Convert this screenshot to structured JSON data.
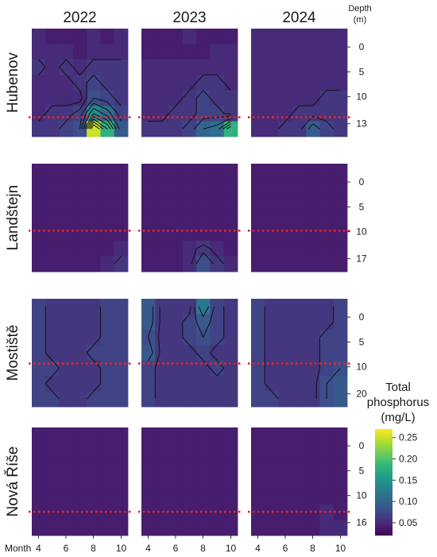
{
  "chart_data": {
    "type": "heatmap",
    "columns": [
      "2022",
      "2023",
      "2024"
    ],
    "rows": [
      "Hubenov",
      "Landštejn",
      "Mostiště",
      "Nová Říše"
    ],
    "depth_header": "Depth",
    "depth_unit": "(m)",
    "month_label": "Month",
    "month_ticks": [
      "4",
      "6",
      "8",
      "10"
    ],
    "depth_ticks": [
      [
        "0",
        "5",
        "10",
        "13"
      ],
      [
        "0",
        "5",
        "10",
        "17"
      ],
      [
        "0",
        "5",
        "10",
        "20"
      ],
      [
        "0",
        "5",
        "10",
        "16"
      ]
    ],
    "thermocline_depth_fraction": [
      0.82,
      0.62,
      0.6,
      0.78
    ],
    "legend": {
      "title": [
        "Total",
        "phosphorus",
        "(mg/L)"
      ],
      "ticks": [
        "0.25",
        "0.20",
        "0.15",
        "0.10",
        "0.05"
      ],
      "tick_values": [
        0.25,
        0.2,
        0.15,
        0.1,
        0.05
      ],
      "range": [
        0.02,
        0.27
      ]
    },
    "grids": [
      [
        [
          [
            0.05,
            0.04,
            0.04,
            0.04,
            0.05,
            0.04,
            0.05
          ],
          [
            0.05,
            0.05,
            0.05,
            0.04,
            0.05,
            0.05,
            0.05
          ],
          [
            0.06,
            0.05,
            0.06,
            0.05,
            0.06,
            0.06,
            0.06
          ],
          [
            0.05,
            0.05,
            0.05,
            0.06,
            0.07,
            0.06,
            0.06
          ],
          [
            0.05,
            0.05,
            0.05,
            0.05,
            0.08,
            0.07,
            0.06
          ],
          [
            0.05,
            0.06,
            0.06,
            0.07,
            0.14,
            0.11,
            0.07
          ],
          [
            0.06,
            0.06,
            0.07,
            0.08,
            0.25,
            0.18,
            0.09
          ]
        ],
        [
          [
            0.04,
            0.04,
            0.04,
            0.05,
            0.04,
            0.04,
            0.04
          ],
          [
            0.04,
            0.04,
            0.04,
            0.04,
            0.04,
            0.05,
            0.05
          ],
          [
            0.05,
            0.05,
            0.05,
            0.05,
            0.05,
            0.05,
            0.05
          ],
          [
            0.05,
            0.05,
            0.05,
            0.05,
            0.06,
            0.06,
            0.05
          ],
          [
            0.05,
            0.05,
            0.05,
            0.06,
            0.07,
            0.06,
            0.06
          ],
          [
            0.05,
            0.05,
            0.06,
            0.06,
            0.07,
            0.07,
            0.06
          ],
          [
            0.06,
            0.06,
            0.06,
            0.07,
            0.1,
            0.11,
            0.18
          ]
        ],
        [
          [
            0.05,
            0.05,
            0.05,
            0.05,
            0.05,
            0.05,
            0.05
          ],
          [
            0.05,
            0.05,
            0.05,
            0.05,
            0.05,
            0.05,
            0.05
          ],
          [
            0.05,
            0.05,
            0.05,
            0.05,
            0.05,
            0.05,
            0.05
          ],
          [
            0.05,
            0.05,
            0.05,
            0.05,
            0.05,
            0.05,
            0.05
          ],
          [
            0.05,
            0.05,
            0.05,
            0.05,
            0.05,
            0.06,
            0.06
          ],
          [
            0.05,
            0.05,
            0.05,
            0.06,
            0.06,
            0.06,
            0.06
          ],
          [
            0.05,
            0.05,
            0.06,
            0.06,
            0.09,
            0.07,
            0.06
          ]
        ]
      ],
      [
        [
          [
            0.04,
            0.04,
            0.04,
            0.04,
            0.04,
            0.04,
            0.04
          ],
          [
            0.04,
            0.04,
            0.04,
            0.04,
            0.04,
            0.04,
            0.04
          ],
          [
            0.04,
            0.04,
            0.04,
            0.04,
            0.04,
            0.04,
            0.04
          ],
          [
            0.04,
            0.04,
            0.04,
            0.04,
            0.04,
            0.04,
            0.04
          ],
          [
            0.04,
            0.04,
            0.04,
            0.04,
            0.04,
            0.04,
            0.04
          ],
          [
            0.04,
            0.04,
            0.04,
            0.04,
            0.04,
            0.04,
            0.05
          ],
          [
            0.04,
            0.04,
            0.04,
            0.04,
            0.04,
            0.05,
            0.06
          ]
        ],
        [
          [
            0.04,
            0.04,
            0.04,
            0.04,
            0.04,
            0.04,
            0.04
          ],
          [
            0.04,
            0.04,
            0.04,
            0.04,
            0.04,
            0.04,
            0.04
          ],
          [
            0.04,
            0.04,
            0.04,
            0.04,
            0.04,
            0.04,
            0.04
          ],
          [
            0.04,
            0.04,
            0.04,
            0.04,
            0.04,
            0.04,
            0.04
          ],
          [
            0.04,
            0.04,
            0.04,
            0.04,
            0.04,
            0.04,
            0.04
          ],
          [
            0.04,
            0.04,
            0.04,
            0.05,
            0.06,
            0.05,
            0.04
          ],
          [
            0.04,
            0.04,
            0.04,
            0.05,
            0.08,
            0.06,
            0.05
          ]
        ],
        [
          [
            0.04,
            0.04,
            0.04,
            0.04,
            0.04,
            0.04,
            0.04
          ],
          [
            0.04,
            0.04,
            0.04,
            0.04,
            0.04,
            0.04,
            0.04
          ],
          [
            0.04,
            0.04,
            0.04,
            0.04,
            0.04,
            0.04,
            0.04
          ],
          [
            0.04,
            0.04,
            0.04,
            0.04,
            0.04,
            0.04,
            0.04
          ],
          [
            0.04,
            0.04,
            0.04,
            0.04,
            0.04,
            0.04,
            0.04
          ],
          [
            0.04,
            0.04,
            0.04,
            0.04,
            0.04,
            0.04,
            0.04
          ],
          [
            0.04,
            0.04,
            0.04,
            0.04,
            0.04,
            0.04,
            0.04
          ]
        ]
      ],
      [
        [
          [
            0.07,
            0.06,
            0.06,
            0.06,
            0.06,
            0.07,
            0.07
          ],
          [
            0.07,
            0.06,
            0.06,
            0.06,
            0.06,
            0.07,
            0.07
          ],
          [
            0.07,
            0.06,
            0.06,
            0.06,
            0.06,
            0.07,
            0.07
          ],
          [
            0.07,
            0.06,
            0.06,
            0.06,
            0.07,
            0.07,
            0.07
          ],
          [
            0.07,
            0.07,
            0.06,
            0.06,
            0.06,
            0.07,
            0.07
          ],
          [
            0.07,
            0.06,
            0.06,
            0.06,
            0.06,
            0.07,
            0.07
          ],
          [
            0.07,
            0.07,
            0.06,
            0.06,
            0.07,
            0.07,
            0.07
          ]
        ],
        [
          [
            0.09,
            0.06,
            0.06,
            0.06,
            0.12,
            0.07,
            0.06
          ],
          [
            0.09,
            0.06,
            0.06,
            0.07,
            0.09,
            0.07,
            0.06
          ],
          [
            0.08,
            0.06,
            0.06,
            0.07,
            0.08,
            0.07,
            0.06
          ],
          [
            0.09,
            0.06,
            0.06,
            0.06,
            0.07,
            0.06,
            0.06
          ],
          [
            0.07,
            0.06,
            0.06,
            0.06,
            0.06,
            0.07,
            0.06
          ],
          [
            0.07,
            0.06,
            0.06,
            0.06,
            0.06,
            0.06,
            0.06
          ],
          [
            0.07,
            0.06,
            0.06,
            0.06,
            0.06,
            0.06,
            0.06
          ]
        ],
        [
          [
            0.07,
            0.06,
            0.06,
            0.06,
            0.06,
            0.06,
            0.07
          ],
          [
            0.07,
            0.06,
            0.06,
            0.06,
            0.06,
            0.06,
            0.07
          ],
          [
            0.07,
            0.06,
            0.06,
            0.06,
            0.06,
            0.07,
            0.07
          ],
          [
            0.07,
            0.06,
            0.06,
            0.06,
            0.06,
            0.07,
            0.07
          ],
          [
            0.07,
            0.06,
            0.06,
            0.06,
            0.06,
            0.07,
            0.08
          ],
          [
            0.07,
            0.06,
            0.06,
            0.06,
            0.06,
            0.08,
            0.09
          ],
          [
            0.07,
            0.07,
            0.06,
            0.06,
            0.06,
            0.08,
            0.09
          ]
        ]
      ],
      [
        [
          [
            0.04,
            0.04,
            0.04,
            0.04,
            0.04,
            0.04,
            0.04
          ],
          [
            0.04,
            0.04,
            0.04,
            0.04,
            0.04,
            0.04,
            0.04
          ],
          [
            0.04,
            0.04,
            0.04,
            0.04,
            0.04,
            0.04,
            0.04
          ],
          [
            0.04,
            0.04,
            0.04,
            0.04,
            0.04,
            0.04,
            0.04
          ],
          [
            0.04,
            0.04,
            0.04,
            0.04,
            0.04,
            0.04,
            0.04
          ],
          [
            0.04,
            0.04,
            0.04,
            0.04,
            0.04,
            0.04,
            0.04
          ],
          [
            0.04,
            0.04,
            0.04,
            0.04,
            0.04,
            0.04,
            0.04
          ]
        ],
        [
          [
            0.04,
            0.04,
            0.04,
            0.04,
            0.04,
            0.04,
            0.04
          ],
          [
            0.04,
            0.04,
            0.04,
            0.04,
            0.04,
            0.04,
            0.04
          ],
          [
            0.04,
            0.04,
            0.04,
            0.04,
            0.04,
            0.04,
            0.04
          ],
          [
            0.04,
            0.04,
            0.04,
            0.04,
            0.04,
            0.04,
            0.04
          ],
          [
            0.04,
            0.04,
            0.04,
            0.04,
            0.04,
            0.04,
            0.04
          ],
          [
            0.04,
            0.04,
            0.04,
            0.04,
            0.04,
            0.04,
            0.04
          ],
          [
            0.04,
            0.04,
            0.04,
            0.04,
            0.04,
            0.04,
            0.04
          ]
        ],
        [
          [
            0.04,
            0.04,
            0.04,
            0.04,
            0.04,
            0.04,
            0.04
          ],
          [
            0.04,
            0.04,
            0.04,
            0.04,
            0.04,
            0.04,
            0.04
          ],
          [
            0.04,
            0.04,
            0.04,
            0.04,
            0.04,
            0.04,
            0.04
          ],
          [
            0.04,
            0.04,
            0.04,
            0.04,
            0.04,
            0.04,
            0.04
          ],
          [
            0.04,
            0.04,
            0.04,
            0.04,
            0.04,
            0.04,
            0.04
          ],
          [
            0.04,
            0.04,
            0.04,
            0.04,
            0.04,
            0.05,
            0.04
          ],
          [
            0.04,
            0.04,
            0.04,
            0.04,
            0.04,
            0.05,
            0.05
          ]
        ]
      ]
    ]
  },
  "colors": {
    "thermocline": "#e8242a",
    "contour": "#111111"
  }
}
